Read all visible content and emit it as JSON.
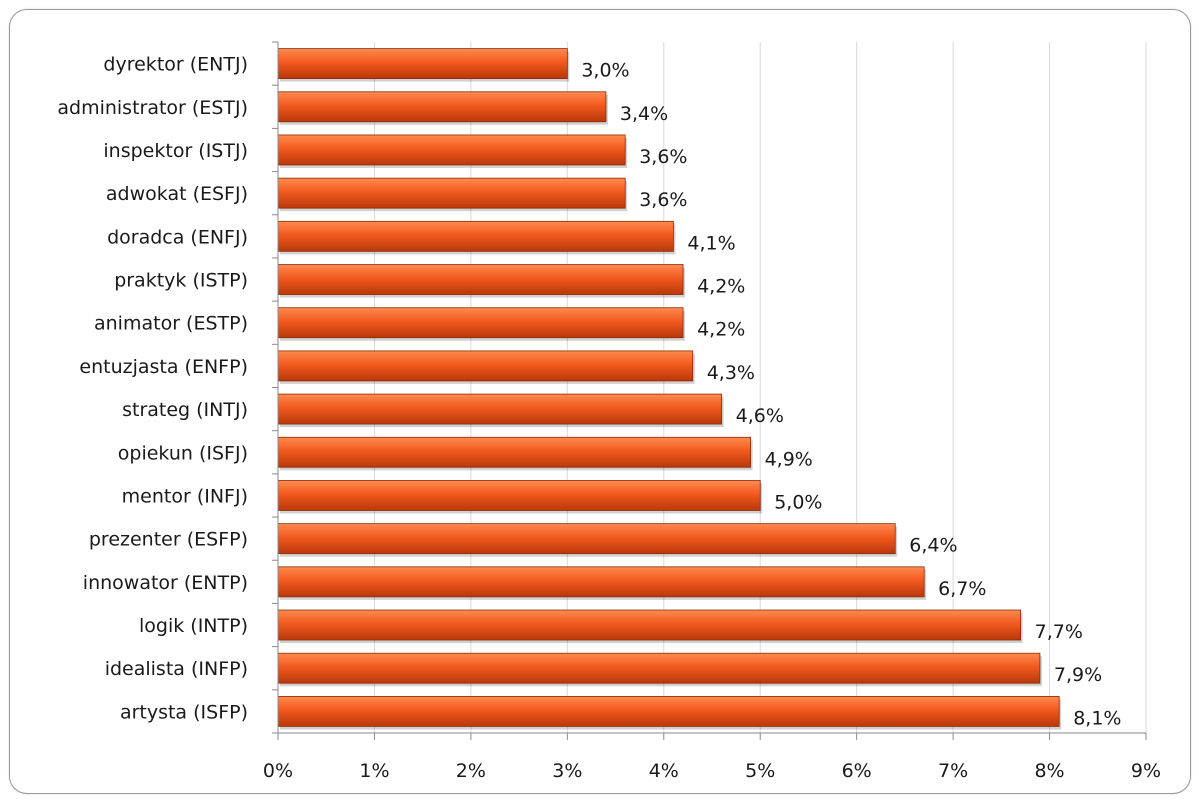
{
  "chart_data": {
    "type": "bar",
    "orientation": "horizontal",
    "categories": [
      "dyrektor (ENTJ)",
      "administrator (ESTJ)",
      "inspektor (ISTJ)",
      "adwokat (ESFJ)",
      "doradca (ENFJ)",
      "praktyk (ISTP)",
      "animator (ESTP)",
      "entuzjasta (ENFP)",
      "strateg (INTJ)",
      "opiekun (ISFJ)",
      "mentor (INFJ)",
      "prezenter (ESFP)",
      "innowator (ENTP)",
      "logik (INTP)",
      "idealista (INFP)",
      "artysta (ISFP)"
    ],
    "values": [
      3.0,
      3.4,
      3.6,
      3.6,
      4.1,
      4.2,
      4.2,
      4.3,
      4.6,
      4.9,
      5.0,
      6.4,
      6.7,
      7.7,
      7.9,
      8.1
    ],
    "value_labels": [
      "3,0%",
      "3,4%",
      "3,6%",
      "3,6%",
      "4,1%",
      "4,2%",
      "4,2%",
      "4,3%",
      "4,6%",
      "4,9%",
      "5,0%",
      "6,4%",
      "6,7%",
      "7,7%",
      "7,9%",
      "8,1%"
    ],
    "x_ticks": [
      "0%",
      "1%",
      "2%",
      "3%",
      "4%",
      "5%",
      "6%",
      "7%",
      "8%",
      "9%"
    ],
    "xlim": [
      0,
      9
    ],
    "title": "",
    "xlabel": "",
    "ylabel": "",
    "grid": "vertical",
    "legend": "none",
    "colors": {
      "bar_light": "#ff8a50",
      "bar_main": "#f25a1e",
      "bar_dark": "#b8380a",
      "bar_border": "#8c2a06",
      "grid": "#d9d9d9",
      "axis": "#8a8a8a"
    }
  }
}
